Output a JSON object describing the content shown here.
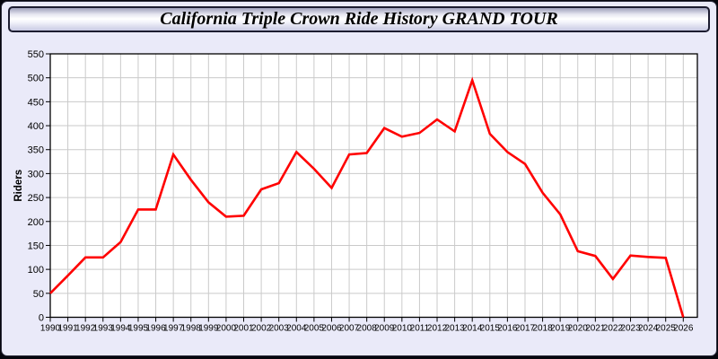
{
  "header": {
    "title": "California Triple Crown Ride History GRAND TOUR"
  },
  "chart_data": {
    "type": "line",
    "title": "California Triple Crown Ride History GRAND TOUR",
    "xlabel": "",
    "ylabel": "Riders",
    "x": [
      1990,
      1991,
      1992,
      1993,
      1994,
      1995,
      1996,
      1997,
      1998,
      1999,
      2000,
      2001,
      2002,
      2003,
      2004,
      2005,
      2006,
      2007,
      2008,
      2009,
      2010,
      2011,
      2012,
      2013,
      2014,
      2015,
      2016,
      2017,
      2018,
      2019,
      2020,
      2021,
      2022,
      2023,
      2024,
      2025,
      2026
    ],
    "series": [
      {
        "name": "Riders",
        "color": "#FF0000",
        "values": [
          50,
          87,
          125,
          125,
          157,
          225,
          225,
          340,
          287,
          240,
          210,
          212,
          267,
          280,
          345,
          310,
          270,
          340,
          343,
          395,
          377,
          385,
          413,
          388,
          495,
          383,
          345,
          320,
          260,
          215,
          138,
          128,
          80,
          129,
          126,
          124,
          0
        ]
      }
    ],
    "ylim": [
      0,
      550
    ],
    "ytick_step": 50,
    "grid": true,
    "legend": "none",
    "colors": {
      "page_bg": "#EAEAF9",
      "plot_bg": "#FFFFFF",
      "grid": "#CACACA",
      "axis": "#000000",
      "line": "#FF0000"
    }
  }
}
